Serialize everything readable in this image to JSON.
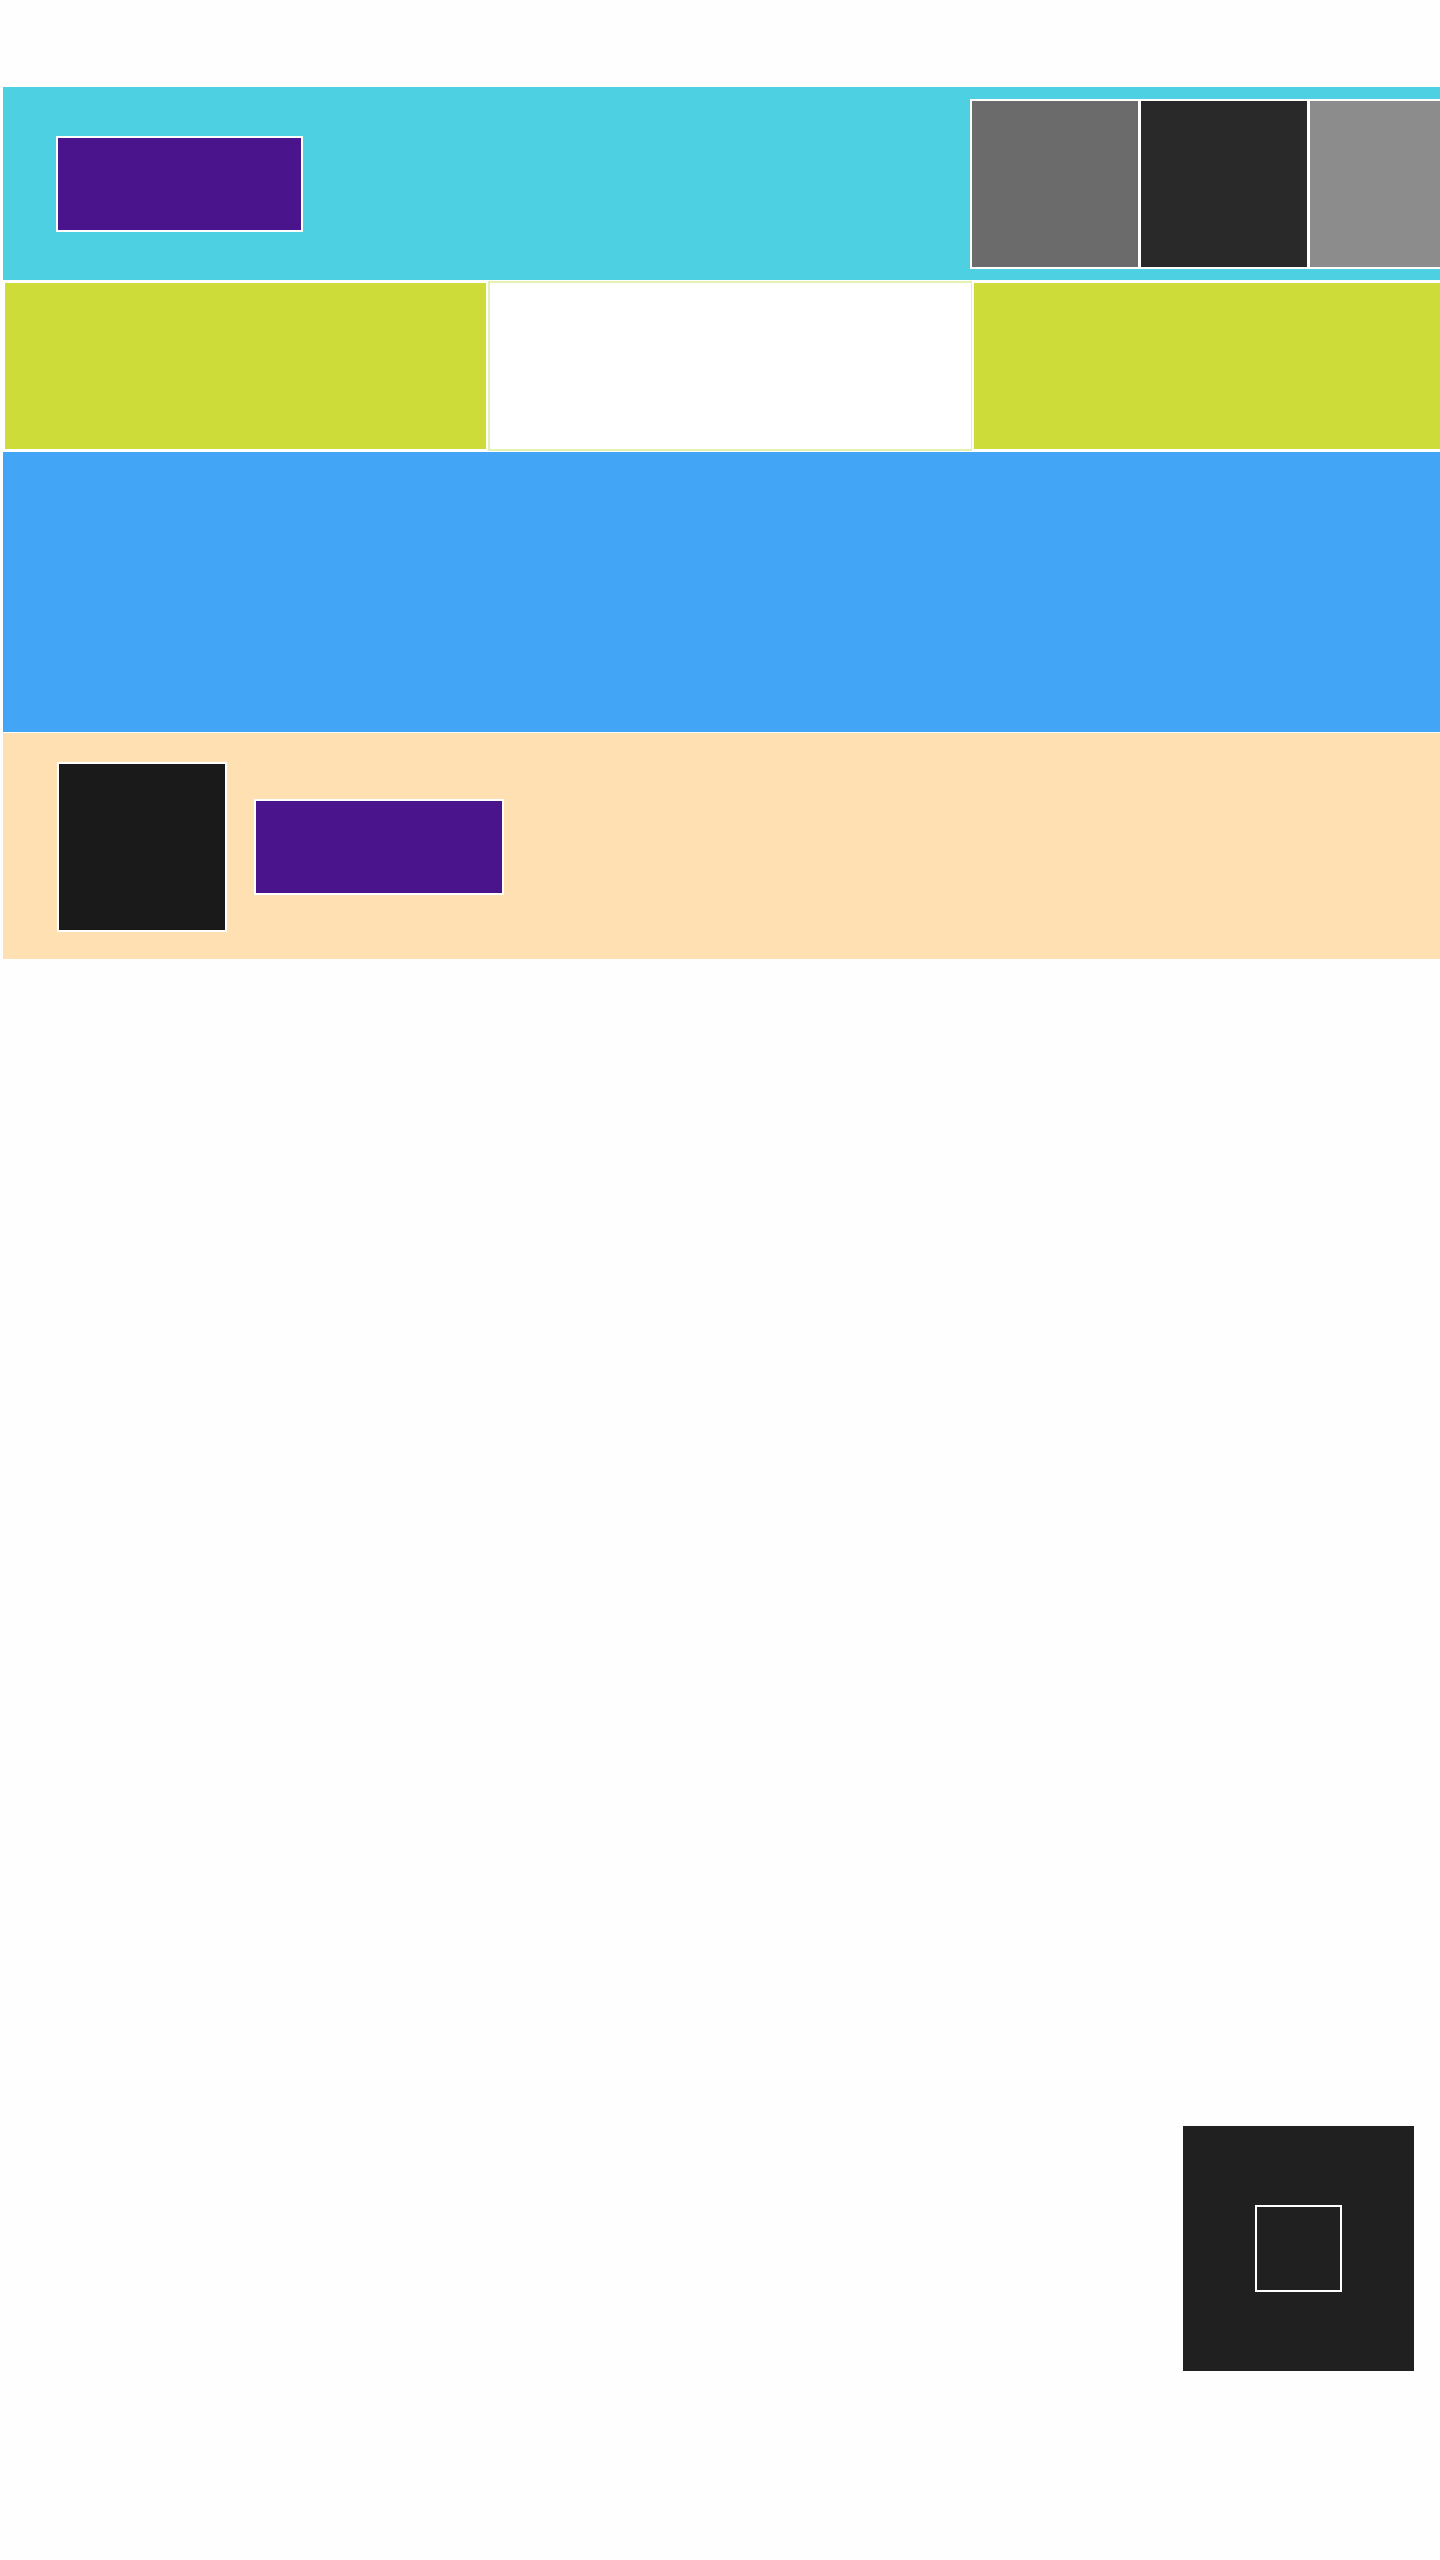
{
  "colors": {
    "page_background": "#fefefe",
    "header_background": "#4dd0e1",
    "primary_button": "#4a148c",
    "tile_accent": "#cddc39",
    "banner_background": "#42a5f5",
    "profile_band_background": "#ffe0b2",
    "avatar_fill": "#1a1a1a",
    "fab_background": "#202020"
  },
  "header": {
    "swatches": [
      {
        "color": "#6b6b6b"
      },
      {
        "color": "#292929"
      },
      {
        "color": "#8c8c8c"
      }
    ]
  },
  "tiles": [
    {
      "color": "#cddc39"
    },
    {
      "color": "#ffffff"
    },
    {
      "color": "#cddc39"
    }
  ],
  "icons": {
    "fab_icon": "square-outline-icon"
  }
}
